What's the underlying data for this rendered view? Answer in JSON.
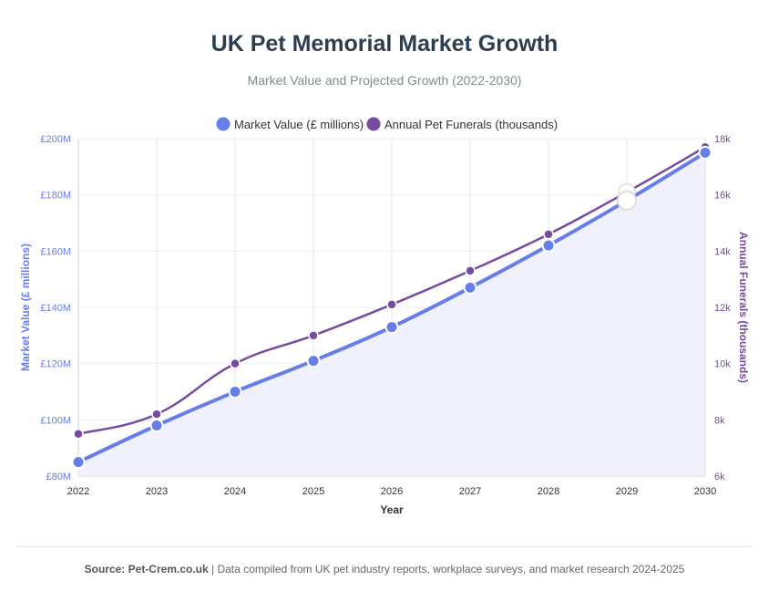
{
  "title": "UK Pet Memorial Market Growth",
  "subtitle": "Market Value and Projected Growth (2022-2030)",
  "footer": {
    "source_label": "Source: Pet-Crem.co.uk",
    "text": " | Data compiled from UK pet industry reports, workplace surveys, and market research 2024-2025"
  },
  "colors": {
    "market": "#667eea",
    "funerals": "#764ba2",
    "fill": "#eef0fc"
  },
  "chart_data": {
    "type": "line",
    "x": [
      2022,
      2023,
      2024,
      2025,
      2026,
      2027,
      2028,
      2029,
      2030
    ],
    "xlabel": "Year",
    "series": [
      {
        "name": "Market Value (£ millions)",
        "axis": "left",
        "values": [
          85,
          98,
          110,
          121,
          133,
          147,
          162,
          178,
          195
        ]
      },
      {
        "name": "Annual Pet Funerals (thousands)",
        "axis": "right",
        "values": [
          7.5,
          8.2,
          10,
          11,
          12.1,
          13.3,
          14.6,
          16.1,
          17.7
        ]
      }
    ],
    "y_left": {
      "label": "Market Value (£ millions)",
      "range": [
        80,
        200
      ],
      "ticks": [
        "£80M",
        "£100M",
        "£120M",
        "£140M",
        "£160M",
        "£180M",
        "£200M"
      ]
    },
    "y_right": {
      "label": "Annual Funerals (thousands)",
      "range": [
        6,
        18
      ],
      "ticks": [
        "6k",
        "8k",
        "10k",
        "12k",
        "14k",
        "16k",
        "18k"
      ]
    },
    "legend": "top",
    "grid": true,
    "highlighted_x": 2029
  }
}
